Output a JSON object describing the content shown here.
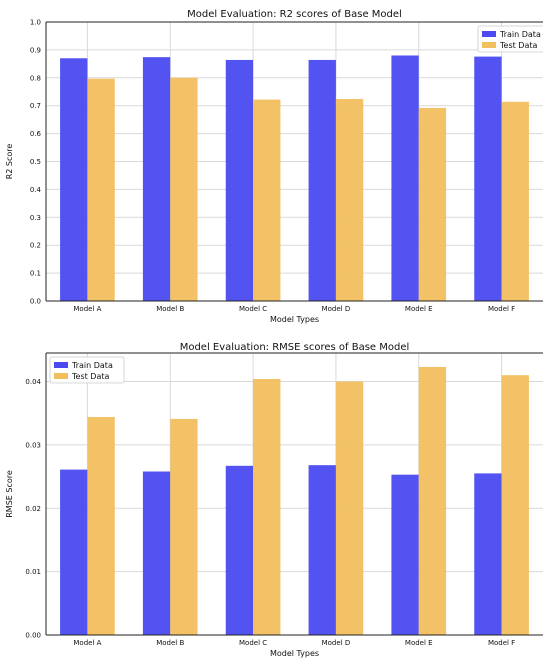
{
  "chart_data": [
    {
      "type": "bar",
      "title": "Model Evaluation: R2 scores of Base Model",
      "xlabel": "Model Types",
      "ylabel": "R2 Score",
      "categories": [
        "Model A",
        "Model B",
        "Model C",
        "Model D",
        "Model E",
        "Model F"
      ],
      "series": [
        {
          "name": "Train Data",
          "color": "#4a4af0",
          "values": [
            0.87,
            0.874,
            0.864,
            0.864,
            0.88,
            0.876
          ]
        },
        {
          "name": "Test Data",
          "color": "#f2bf5e",
          "values": [
            0.797,
            0.8,
            0.722,
            0.724,
            0.692,
            0.714
          ]
        }
      ],
      "ylim": [
        0.0,
        1.0
      ],
      "yticks": [
        "0.0",
        "0.1",
        "0.2",
        "0.3",
        "0.4",
        "0.5",
        "0.6",
        "0.7",
        "0.8",
        "0.9",
        "1.0"
      ],
      "grid": true,
      "legend": "top-right"
    },
    {
      "type": "bar",
      "title": "Model Evaluation: RMSE scores of Base Model",
      "xlabel": "Model Types",
      "ylabel": "RMSE Score",
      "categories": [
        "Model A",
        "Model B",
        "Model C",
        "Model D",
        "Model E",
        "Model F"
      ],
      "series": [
        {
          "name": "Train Data",
          "color": "#4a4af0",
          "values": [
            0.0261,
            0.0258,
            0.0267,
            0.0268,
            0.0253,
            0.0255
          ]
        },
        {
          "name": "Test Data",
          "color": "#f2bf5e",
          "values": [
            0.0344,
            0.0341,
            0.0404,
            0.04,
            0.0423,
            0.041
          ]
        }
      ],
      "ylim": [
        0.0,
        0.0445
      ],
      "yticks": [
        "0.00",
        "0.01",
        "0.02",
        "0.03",
        "0.04"
      ],
      "grid": true,
      "legend": "top-left"
    }
  ]
}
